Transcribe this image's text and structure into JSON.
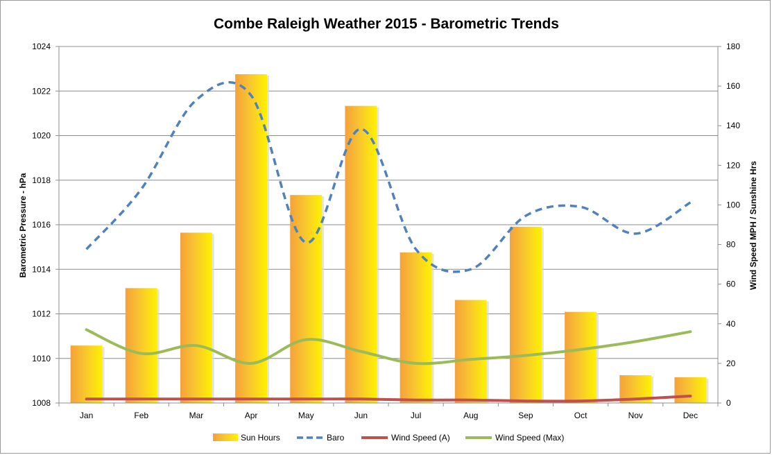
{
  "chart_data": {
    "type": "bar+line",
    "title": "Combe Raleigh Weather 2015 - Barometric Trends",
    "categories": [
      "Jan",
      "Feb",
      "Mar",
      "Apr",
      "May",
      "Jun",
      "Jul",
      "Aug",
      "Sep",
      "Oct",
      "Nov",
      "Dec"
    ],
    "y_left": {
      "label": "Barometric Pressure - hPa",
      "lim": [
        1008,
        1024
      ],
      "ticks": [
        1008,
        1010,
        1012,
        1014,
        1016,
        1018,
        1020,
        1022,
        1024
      ]
    },
    "y_right": {
      "label": "Wind Speed MPH / Sunshine Hrs",
      "lim": [
        0,
        180
      ],
      "ticks": [
        0,
        20,
        40,
        60,
        80,
        100,
        120,
        140,
        160,
        180
      ]
    },
    "grid": true,
    "legend_position": "bottom",
    "series": [
      {
        "name": "Sun Hours",
        "kind": "bar",
        "axis": "right",
        "color_from": "#f5a13a",
        "color_to": "#fff200",
        "values": [
          29,
          58,
          86,
          166,
          105,
          150,
          76,
          52,
          89,
          46,
          14,
          13
        ]
      },
      {
        "name": "Baro",
        "kind": "line",
        "style": "dashed",
        "axis": "left",
        "color": "#4f81bd",
        "values": [
          1014.9,
          1017.6,
          1021.6,
          1021.8,
          1015.2,
          1020.3,
          1014.9,
          1014.0,
          1016.4,
          1016.8,
          1015.6,
          1017.0
        ]
      },
      {
        "name": "Wind Speed (A)",
        "kind": "line",
        "style": "solid",
        "axis": "right",
        "color": "#c0504d",
        "values": [
          2,
          2,
          2,
          2,
          2,
          2,
          1.5,
          1.5,
          1,
          1,
          2,
          3.5
        ]
      },
      {
        "name": "Wind Speed (Max)",
        "kind": "line",
        "style": "solid",
        "axis": "right",
        "color": "#9bbb59",
        "values": [
          37,
          25,
          29,
          20,
          32,
          26,
          20,
          22,
          24,
          27,
          31,
          36
        ]
      }
    ]
  }
}
